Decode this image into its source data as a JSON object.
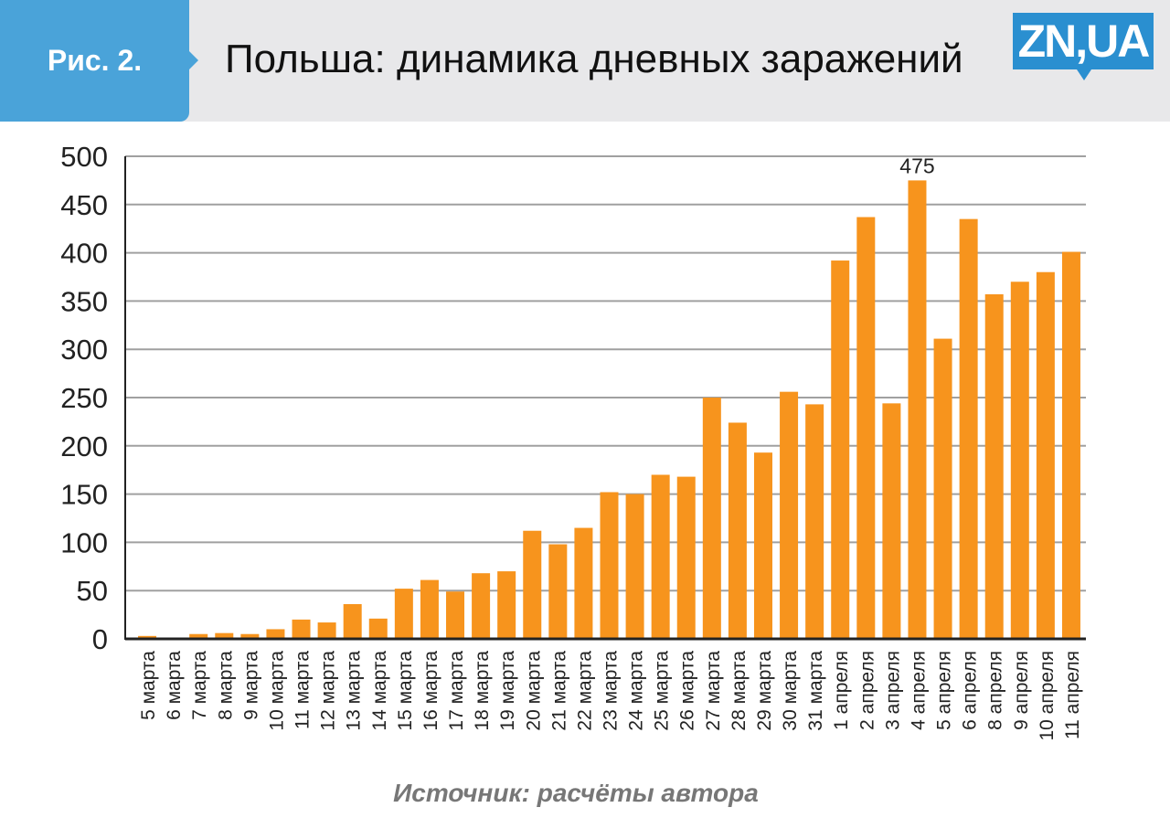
{
  "header": {
    "figure_label": "Рис. 2.",
    "logo": "ZN,UA"
  },
  "chart_data": {
    "type": "bar",
    "title": "Польша: динамика дневных заражений",
    "xlabel": "",
    "ylabel": "",
    "ylim": [
      0,
      500
    ],
    "yticks": [
      0,
      50,
      100,
      150,
      200,
      250,
      300,
      350,
      400,
      450,
      500
    ],
    "grid": true,
    "bar_color": "#f7941d",
    "categories": [
      "5 марта",
      "6 марта",
      "7 марта",
      "8 марта",
      "9 марта",
      "10 марта",
      "11 марта",
      "12 марта",
      "13 марта",
      "14 марта",
      "15 марта",
      "16 марта",
      "17 марта",
      "18 марта",
      "19 марта",
      "20 марта",
      "21 марта",
      "22 марта",
      "23 марта",
      "24 марта",
      "25 марта",
      "26 марта",
      "27 марта",
      "28 марта",
      "29 марта",
      "30 марта",
      "31 марта",
      "1 апреля",
      "2 апреля",
      "3 апреля",
      "4 апреля",
      "5 апреля",
      "6 апреля",
      "8 апреля",
      "9 апреля",
      "10 апреля",
      "11 апреля"
    ],
    "values": [
      3,
      1,
      5,
      6,
      5,
      10,
      20,
      17,
      36,
      21,
      52,
      61,
      49,
      68,
      70,
      112,
      98,
      115,
      152,
      150,
      170,
      168,
      250,
      224,
      193,
      256,
      243,
      392,
      437,
      244,
      475,
      311,
      435,
      357,
      370,
      380,
      401
    ],
    "annotations": [
      {
        "category": "4 апреля",
        "text": "475"
      }
    ]
  },
  "source": "Источник: расчёты автора"
}
